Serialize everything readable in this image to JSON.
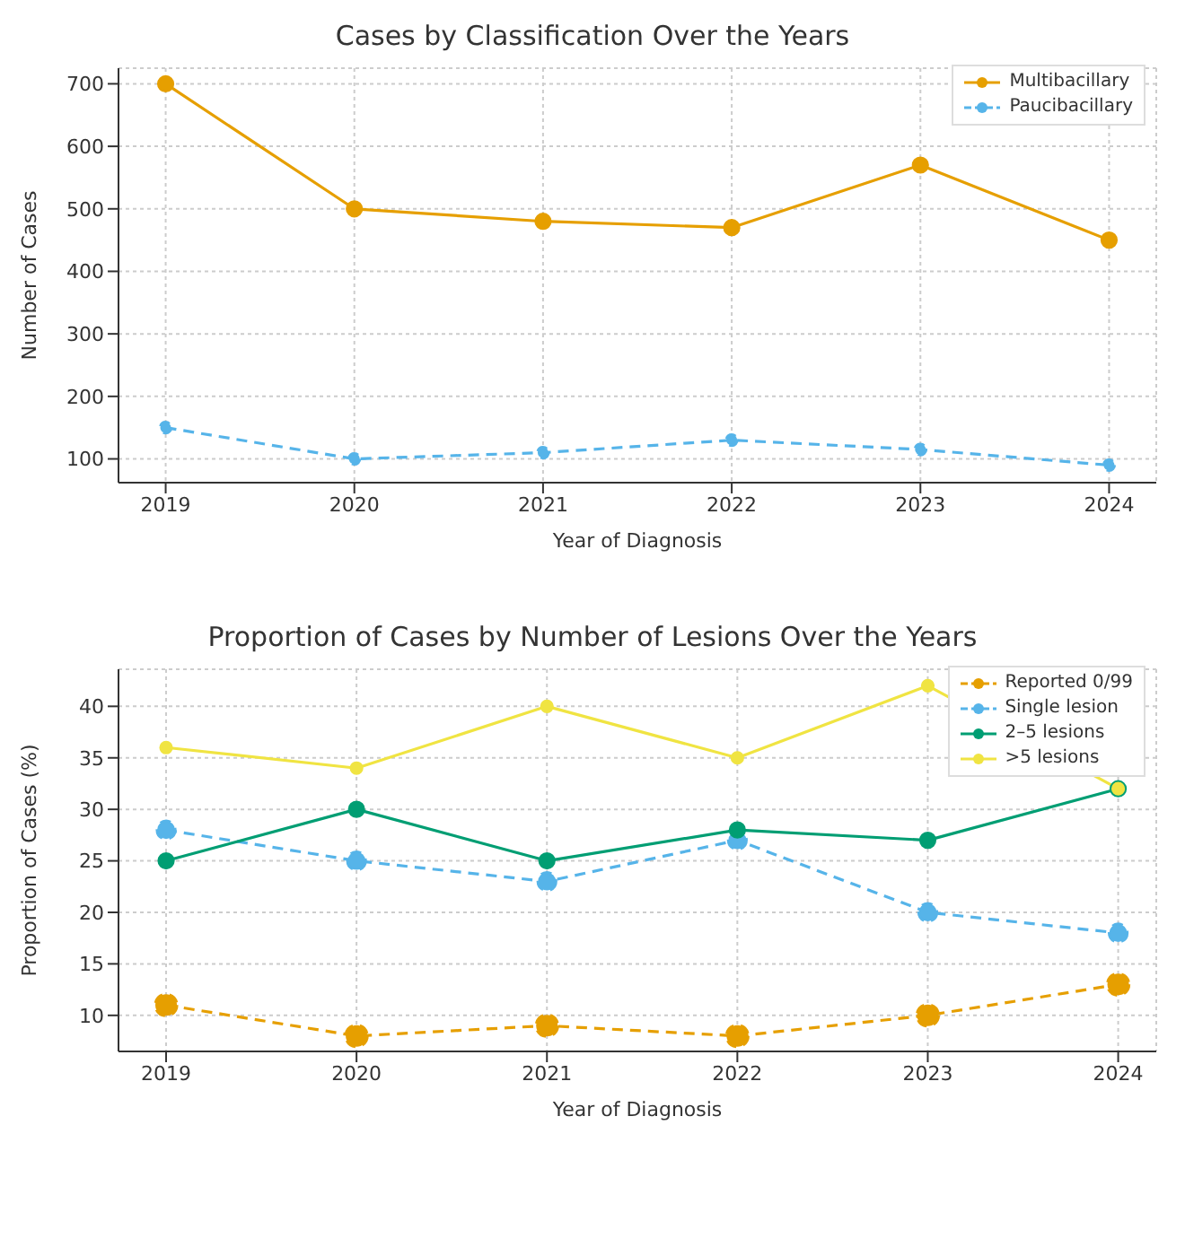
{
  "chart_data": [
    {
      "type": "line",
      "title": "Cases by Classification Over the Years",
      "xlabel": "Year of Diagnosis",
      "ylabel": "Number of Cases",
      "x": [
        2019,
        2020,
        2021,
        2022,
        2023,
        2024
      ],
      "xlim": [
        2018.75,
        2024.25
      ],
      "xticks": [
        2019,
        2020,
        2021,
        2022,
        2023,
        2024
      ],
      "ylim": [
        62,
        725
      ],
      "yticks": [
        100,
        200,
        300,
        400,
        500,
        600,
        700
      ],
      "grid": true,
      "legend": "top right",
      "marker": "circle",
      "series": [
        {
          "name": "Multibacillary",
          "color": "#e69f00",
          "line_style": "solid",
          "values": [
            700,
            500,
            480,
            470,
            570,
            450
          ]
        },
        {
          "name": "Paucibacillary",
          "color": "#56b4e9",
          "line_style": "dashed",
          "values": [
            150,
            100,
            110,
            130,
            115,
            90
          ]
        }
      ]
    },
    {
      "type": "line",
      "title": "Proportion of Cases by Number of Lesions Over the Years",
      "xlabel": "Year of Diagnosis",
      "ylabel": "Proportion of Cases (%)",
      "x": [
        2019,
        2020,
        2021,
        2022,
        2023,
        2024
      ],
      "xlim": [
        2018.75,
        2024.2
      ],
      "xticks": [
        2019,
        2020,
        2021,
        2022,
        2023,
        2024
      ],
      "ylim": [
        6.5,
        43.6
      ],
      "yticks": [
        10,
        15,
        20,
        25,
        30,
        35,
        40
      ],
      "grid": true,
      "legend": "top right",
      "marker": "circle",
      "series": [
        {
          "name": "Reported 0/99",
          "color": "#e69f00",
          "line_style": "dashed",
          "values": [
            11,
            8,
            9,
            8,
            10,
            13
          ]
        },
        {
          "name": "Single lesion",
          "color": "#56b4e9",
          "line_style": "dashed",
          "values": [
            28,
            25,
            23,
            27,
            20,
            18
          ]
        },
        {
          "name": "2–5 lesions",
          "color": "#009e73",
          "line_style": "solid",
          "values": [
            25,
            30,
            25,
            28,
            27,
            32
          ]
        },
        {
          "name": ">5 lesions",
          "color": "#f0e442",
          "line_style": "solid",
          "values": [
            36,
            34,
            40,
            35,
            42,
            32
          ]
        }
      ]
    }
  ]
}
